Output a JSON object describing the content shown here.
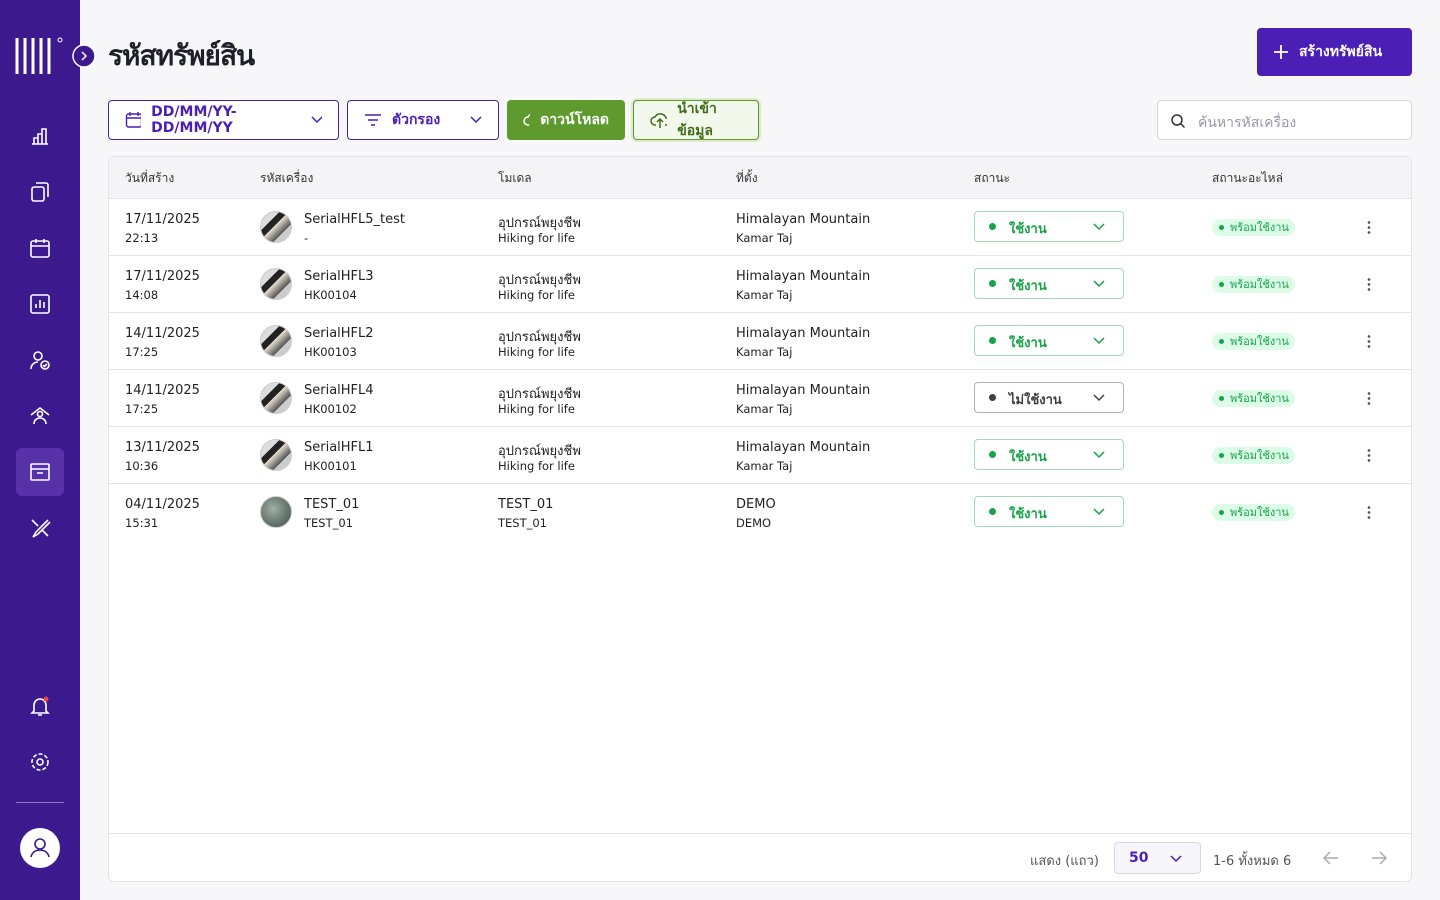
{
  "header": {
    "title": "รหัสทรัพย์สิน",
    "create_button": "สร้างทรัพย์สิน"
  },
  "toolbar": {
    "date_range": "DD/MM/YY-DD/MM/YY",
    "filter": "ตัวกรอง",
    "download": "ดาวน์โหลด",
    "import": "นำเข้าข้อมูล",
    "search_placeholder": "ค้นหารหัสเครื่อง"
  },
  "table": {
    "columns": [
      "วันที่สร้าง",
      "รหัสเครื่อง",
      "โมเดล",
      "ที่ตั้ง",
      "สถานะ",
      "สถานะอะไหล่"
    ],
    "rows": [
      {
        "date": "17/11/2025",
        "time": "22:13",
        "serial": "SerialHFL5_test",
        "code": "-",
        "model": "อุปกรณ์พยุงชีพ",
        "model_detail": "Hiking for life",
        "location": "Himalayan Mountain",
        "location_detail": "Kamar Taj",
        "status": "ใช้งาน",
        "status_color": "#16a34a",
        "part_status": "พร้อมใช้งาน"
      },
      {
        "date": "17/11/2025",
        "time": "14:08",
        "serial": "SerialHFL3",
        "code": "HK00104",
        "model": "อุปกรณ์พยุงชีพ",
        "model_detail": "Hiking for life",
        "location": "Himalayan Mountain",
        "location_detail": "Kamar Taj",
        "status": "ใช้งาน",
        "status_color": "#16a34a",
        "part_status": "พร้อมใช้งาน"
      },
      {
        "date": "14/11/2025",
        "time": "17:25",
        "serial": "SerialHFL2",
        "code": "HK00103",
        "model": "อุปกรณ์พยุงชีพ",
        "model_detail": "Hiking for life",
        "location": "Himalayan Mountain",
        "location_detail": "Kamar Taj",
        "status": "ใช้งาน",
        "status_color": "#16a34a",
        "part_status": "พร้อมใช้งาน"
      },
      {
        "date": "14/11/2025",
        "time": "17:25",
        "serial": "SerialHFL4",
        "code": "HK00102",
        "model": "อุปกรณ์พยุงชีพ",
        "model_detail": "Hiking for life",
        "location": "Himalayan Mountain",
        "location_detail": "Kamar Taj",
        "status": "ไม่ใช้งาน",
        "status_color": "#3f3f46",
        "part_status": "พร้อมใช้งาน"
      },
      {
        "date": "13/11/2025",
        "time": "10:36",
        "serial": "SerialHFL1",
        "code": "HK00101",
        "model": "อุปกรณ์พยุงชีพ",
        "model_detail": "Hiking for life",
        "location": "Himalayan Mountain",
        "location_detail": "Kamar Taj",
        "status": "ใช้งาน",
        "status_color": "#16a34a",
        "part_status": "พร้อมใช้งาน"
      },
      {
        "date": "04/11/2025",
        "time": "15:31",
        "serial": "TEST_01",
        "code": "TEST_01",
        "model": "TEST_01",
        "model_detail": "TEST_01",
        "location": "DEMO",
        "location_detail": "DEMO",
        "status": "ใช้งาน",
        "status_color": "#16a34a",
        "part_status": "พร้อมใช้งาน"
      }
    ]
  },
  "footer": {
    "rows_label": "แสดง (แถว)",
    "page_size": "50",
    "range": "1-6 ทั้งหมด 6"
  }
}
